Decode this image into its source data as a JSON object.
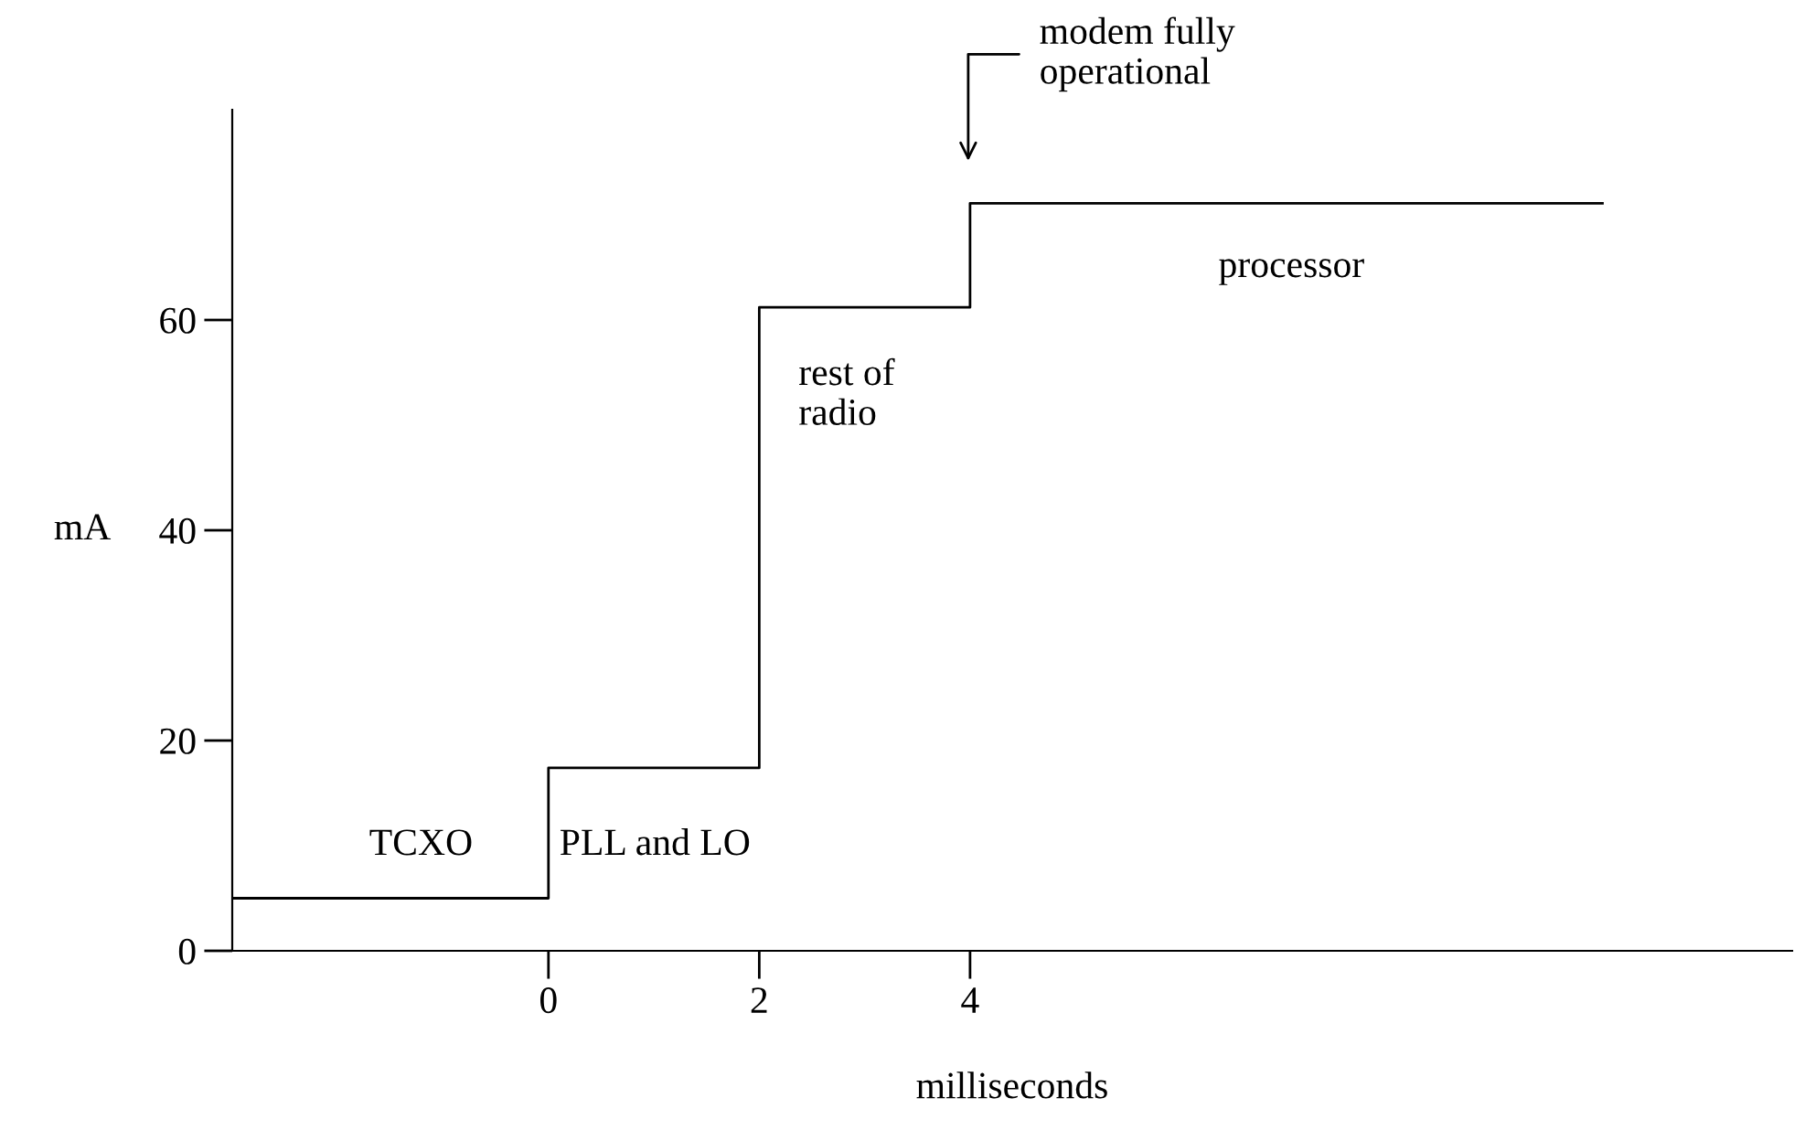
{
  "chart_data": {
    "type": "step",
    "xlabel": "milliseconds",
    "ylabel": "mA",
    "x": [
      -3,
      0,
      2,
      4,
      10
    ],
    "series": [
      {
        "color": "#000000",
        "values": [
          5,
          17.4,
          61.2,
          71.1,
          71.1
        ]
      }
    ],
    "xlim": [
      -3,
      11.8
    ],
    "xticks": [
      0,
      2,
      4
    ],
    "ylim": [
      0,
      80
    ],
    "yticks": [
      0,
      20,
      40,
      60
    ],
    "grid": false,
    "marker": "none",
    "line_style": "solid",
    "annotations": [
      "TCXO",
      "PLL and LO",
      "rest of\nradio",
      "processor",
      "modem fully\noperational"
    ]
  }
}
